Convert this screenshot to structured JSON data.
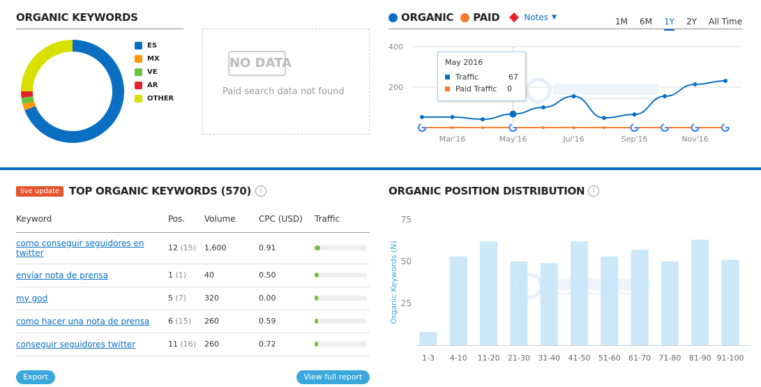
{
  "organic_keywords": {
    "title": "ORGANIC KEYWORDS",
    "chart_data": {
      "type": "pie",
      "categories": [
        "ES",
        "MX",
        "VE",
        "AR",
        "OTHER"
      ],
      "values": [
        69,
        2,
        2,
        2,
        25
      ],
      "colors": [
        "#0a6fc2",
        "#ff9800",
        "#6cc23a",
        "#e5202e",
        "#d7e000"
      ]
    }
  },
  "paid": {
    "badge": "NO DATA",
    "message": "Paid search data not found"
  },
  "traffic": {
    "legend": [
      {
        "label": "ORGANIC",
        "color": "#0a6fc2"
      },
      {
        "label": "PAID",
        "color": "#f57c2b"
      }
    ],
    "notes_label": "Notes",
    "ranges": [
      "1M",
      "6M",
      "1Y",
      "2Y",
      "All Time"
    ],
    "active_range": "1Y",
    "tooltip": {
      "title": "May 2016",
      "rows": [
        {
          "label": "Traffic",
          "value": "67",
          "color": "#0a6fc2"
        },
        {
          "label": "Paid Traffic",
          "value": "0",
          "color": "#f57c2b"
        }
      ]
    },
    "chart_data": {
      "type": "line",
      "x": [
        "Feb'16",
        "Mar'16",
        "Apr'16",
        "May'16",
        "Jun'16",
        "Jul'16",
        "Aug'16",
        "Sep'16",
        "Oct'16",
        "Nov'16",
        "Dec'16"
      ],
      "x_tick_labels": [
        "Mar'16",
        "May'16",
        "Jul'16",
        "Sep'16",
        "Nov'16"
      ],
      "y_ticks": [
        200,
        400
      ],
      "ylim": [
        0,
        400
      ],
      "grid": true,
      "series": [
        {
          "name": "ORGANIC",
          "color": "#0a6fc2",
          "values": [
            52,
            52,
            41,
            67,
            100,
            155,
            48,
            65,
            155,
            214,
            231
          ]
        },
        {
          "name": "PAID",
          "color": "#f57c2b",
          "values": [
            0,
            0,
            0,
            0,
            0,
            0,
            0,
            0,
            0,
            0,
            0
          ]
        }
      ]
    }
  },
  "top_keywords": {
    "live_badge": "live update",
    "title": "TOP ORGANIC KEYWORDS (570)",
    "info": "i",
    "columns": [
      "Keyword",
      "Pos.",
      "Volume",
      "CPC (USD)",
      "Traffic"
    ],
    "rows": [
      {
        "keyword": "como conseguir seguidores en twitter",
        "pos": "12",
        "prev": "(15)",
        "volume": "1,600",
        "cpc": "0.91",
        "traffic": 10
      },
      {
        "keyword": "enviar nota de prensa",
        "pos": "1",
        "prev": "(1)",
        "volume": "40",
        "cpc": "0.50",
        "traffic": 8
      },
      {
        "keyword": "my god",
        "pos": "5",
        "prev": "(7)",
        "volume": "320",
        "cpc": "0.00",
        "traffic": 7
      },
      {
        "keyword": "como hacer una nota de prensa",
        "pos": "6",
        "prev": "(15)",
        "volume": "260",
        "cpc": "0.59",
        "traffic": 6
      },
      {
        "keyword": "conseguir seguidores twitter",
        "pos": "11",
        "prev": "(16)",
        "volume": "260",
        "cpc": "0.72",
        "traffic": 6
      }
    ],
    "export_label": "Export",
    "full_report_label": "View full report"
  },
  "position_distribution": {
    "title": "ORGANIC POSITION DISTRIBUTION",
    "info": "i",
    "chart_data": {
      "type": "bar",
      "categories": [
        "1-3",
        "4-10",
        "11-20",
        "21-30",
        "31-40",
        "41-50",
        "51-60",
        "61-70",
        "71-80",
        "81-90",
        "91-100"
      ],
      "values": [
        8,
        53,
        62,
        50,
        49,
        62,
        53,
        57,
        50,
        63,
        51
      ],
      "ylabel": "Organic Keywords (N)",
      "y_ticks": [
        25,
        50,
        75
      ],
      "ylim": [
        0,
        75
      ],
      "color": "#c5e4f7"
    }
  }
}
